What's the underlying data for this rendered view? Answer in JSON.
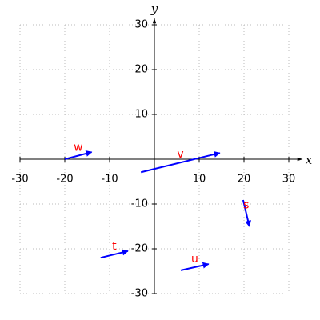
{
  "chart_data": {
    "type": "vector",
    "x_label": "x",
    "y_label": "y",
    "xlim": [
      -30,
      30
    ],
    "ylim": [
      -30,
      30
    ],
    "xticks": [
      -30,
      -20,
      -10,
      10,
      20,
      30
    ],
    "yticks": [
      -30,
      -20,
      -10,
      10,
      20,
      30
    ],
    "grid": true,
    "color": "#0000ff",
    "label_color": "#ff0000",
    "vectors": [
      {
        "name": "w",
        "x": [
          -20,
          -14
        ],
        "y": [
          0,
          1.6
        ]
      },
      {
        "name": "v",
        "x": [
          -3,
          14.6
        ],
        "y": [
          -2.9,
          1.4
        ]
      },
      {
        "name": "s",
        "x": [
          19.8,
          21.2
        ],
        "y": [
          -9.1,
          -15
        ]
      },
      {
        "name": "t",
        "x": [
          -12,
          -5.9
        ],
        "y": [
          -22,
          -20.5
        ]
      },
      {
        "name": "u",
        "x": [
          5.9,
          12.1
        ],
        "y": [
          -24.8,
          -23.4
        ]
      }
    ]
  }
}
